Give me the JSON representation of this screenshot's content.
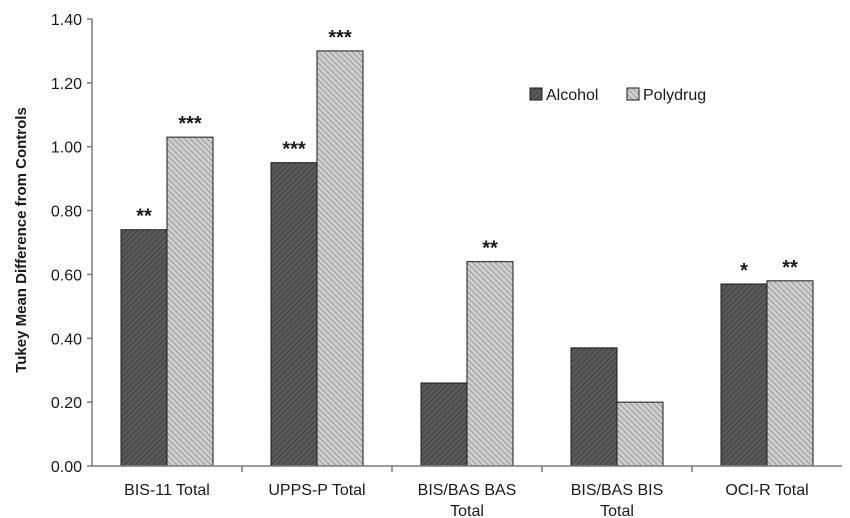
{
  "chart_data": {
    "type": "bar",
    "title": "",
    "xlabel": "",
    "ylabel": "Tukey Mean Difference from Controls",
    "ylim": [
      0,
      1.4
    ],
    "yticks": [
      "0.00",
      "0.20",
      "0.40",
      "0.60",
      "0.80",
      "1.00",
      "1.20",
      "1.40"
    ],
    "categories": [
      [
        "BIS-11 Total"
      ],
      [
        "UPPS-P Total"
      ],
      [
        "BIS/BAS BAS",
        "Total"
      ],
      [
        "BIS/BAS BIS",
        "Total"
      ],
      [
        "OCI-R Total"
      ]
    ],
    "series": [
      {
        "name": "Alcohol",
        "values": [
          0.74,
          0.95,
          0.26,
          0.37,
          0.57
        ],
        "significance": [
          "**",
          "***",
          "",
          "",
          "*"
        ],
        "color": "#555555"
      },
      {
        "name": "Polydrug",
        "values": [
          1.03,
          1.3,
          0.64,
          0.2,
          0.58
        ],
        "significance": [
          "***",
          "***",
          "**",
          "",
          "**"
        ],
        "color": "#b0b0b0"
      }
    ],
    "grid": false,
    "legend_position": "top-right"
  }
}
